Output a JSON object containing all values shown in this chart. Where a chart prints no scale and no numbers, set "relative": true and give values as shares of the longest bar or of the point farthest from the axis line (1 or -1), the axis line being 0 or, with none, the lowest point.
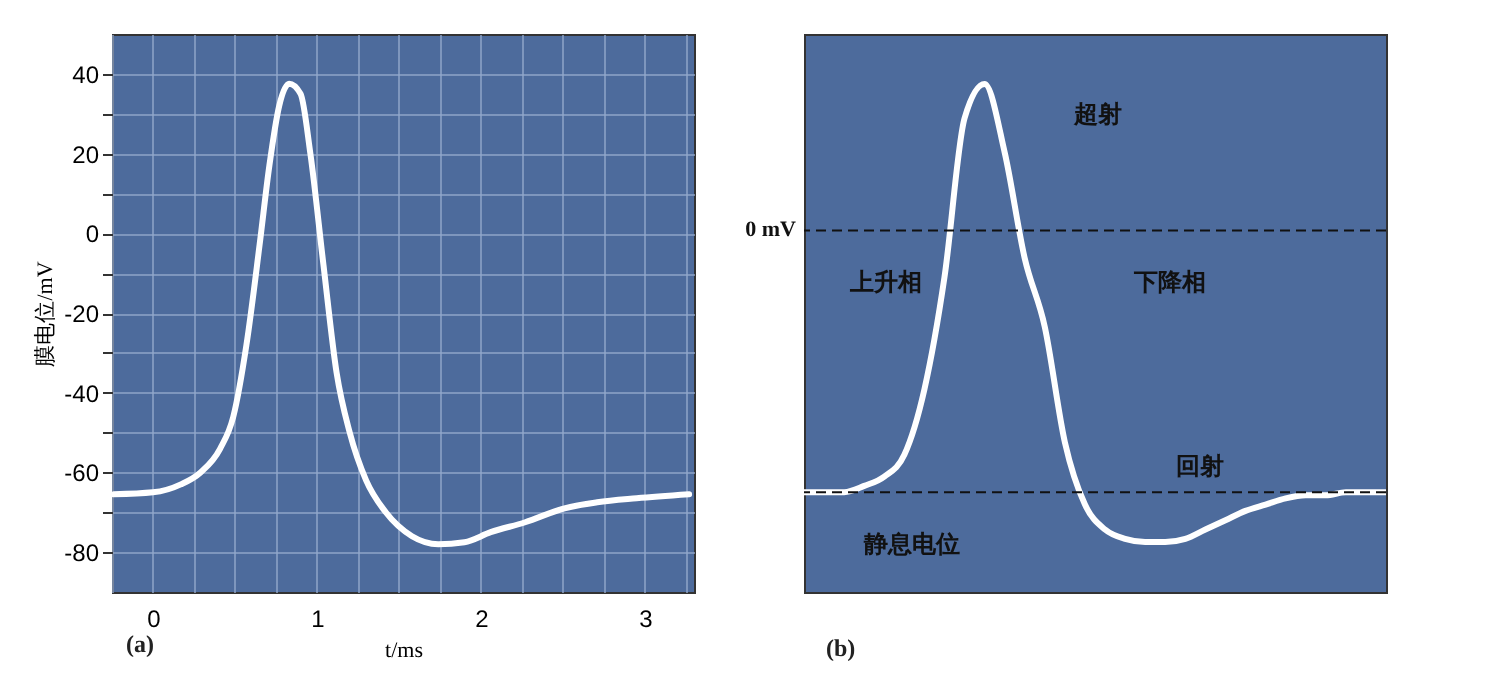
{
  "chart_data": [
    {
      "type": "line",
      "xlabel": "t/ms",
      "ylabel": "膜电位/mV",
      "annotations": [
        "(a)"
      ],
      "color": "#ffffff",
      "grid": true,
      "x": [
        -0.24,
        0,
        0.17,
        0.29,
        0.41,
        0.49,
        0.57,
        0.65,
        0.71,
        0.77,
        0.83,
        0.9,
        0.96,
        1.04,
        1.12,
        1.2,
        1.3,
        1.42,
        1.58,
        1.74,
        1.9,
        2.06,
        2.27,
        2.51,
        2.71,
        2.95,
        3.27
      ],
      "values": [
        -65.5,
        -65,
        -63,
        -60,
        -54,
        -46,
        -28,
        -3,
        17,
        32,
        37.5,
        35,
        20,
        -8,
        -35,
        -50,
        -62,
        -70,
        -76,
        -78,
        -77.5,
        -75,
        -72.5,
        -69,
        -67.5,
        -66.5,
        -65.5
      ],
      "xlim": [
        -0.25,
        3.3
      ],
      "ylim": [
        -90,
        50
      ],
      "xticks": [
        {
          "value": -0.25,
          "label": null
        },
        0,
        {
          "value": 0.25,
          "label": null
        },
        {
          "value": 0.5,
          "label": null
        },
        {
          "value": 0.75,
          "label": null
        },
        1,
        {
          "value": 1.25,
          "label": null
        },
        {
          "value": 1.5,
          "label": null
        },
        {
          "value": 1.75,
          "label": null
        },
        2,
        {
          "value": 2.25,
          "label": null
        },
        {
          "value": 2.5,
          "label": null
        },
        {
          "value": 2.75,
          "label": null
        },
        3,
        {
          "value": 3.25,
          "label": null
        }
      ],
      "yticks": [
        -80,
        {
          "value": -70,
          "label": null
        },
        -60,
        {
          "value": -50,
          "label": null
        },
        -40,
        {
          "value": -30,
          "label": null
        },
        -20,
        {
          "value": -10,
          "label": null
        },
        0,
        {
          "value": 10,
          "label": null
        },
        20,
        {
          "value": 30,
          "label": null
        },
        40
      ]
    },
    {
      "type": "line",
      "relative": true,
      "color": "#ffffff",
      "annotations": [
        "超射",
        "上升相",
        "下降相",
        "回射",
        "静息电位",
        "(b)"
      ],
      "categories": [
        null,
        null,
        null,
        null,
        null,
        null,
        null,
        null,
        null,
        null,
        null,
        null,
        null,
        null,
        null,
        null,
        null,
        null,
        null,
        null,
        null,
        null,
        null,
        null,
        null,
        null,
        null,
        null,
        null,
        null
      ],
      "values": [
        -0.84,
        -0.84,
        -0.84,
        -0.82,
        -0.79,
        -0.72,
        -0.51,
        -0.15,
        0.36,
        0.47,
        0.25,
        -0.09,
        -0.31,
        -0.68,
        -0.88,
        -0.96,
        -0.99,
        -1,
        -1,
        -0.99,
        -0.96,
        -0.93,
        -0.9,
        -0.88,
        -0.86,
        -0.85,
        -0.85,
        -0.84,
        -0.84,
        -0.84
      ],
      "ref_lines": [
        {
          "axis": "y",
          "value": 0,
          "label": "0 mV",
          "color": "#111111",
          "line_style": "dashed"
        },
        {
          "axis": "y",
          "value": -0.84,
          "color": "#111111",
          "line_style": "dashed"
        }
      ]
    }
  ]
}
